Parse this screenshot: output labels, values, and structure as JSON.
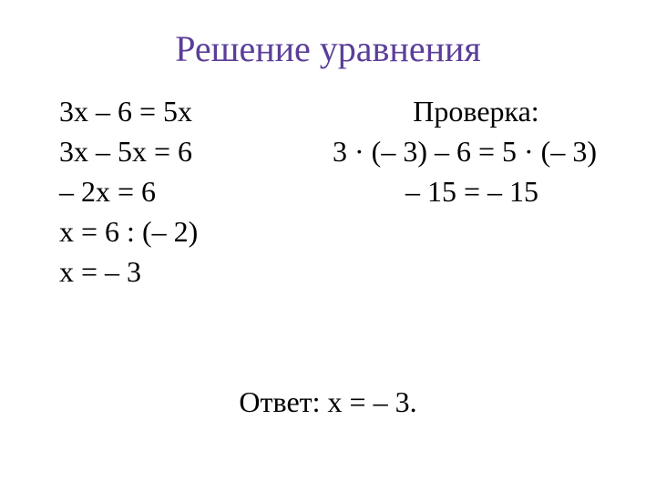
{
  "title": "Решение уравнения",
  "title_color": "#5b3e99",
  "background_color": "#ffffff",
  "text_color": "#000000",
  "title_fontsize": 40,
  "body_fontsize": 32,
  "font_family": "Times New Roman",
  "left": {
    "l1": "3х – 6 = 5х",
    "l2": "3х – 5х = 6",
    "l3": "– 2х = 6",
    "l4": "х = 6 : (– 2)",
    "l5": "х = – 3"
  },
  "right": {
    "header": "Проверка:",
    "l1": "3 · (– 3) – 6 = 5 · (– 3)",
    "l2": "– 15 = – 15"
  },
  "answer": "Ответ: х = – 3."
}
